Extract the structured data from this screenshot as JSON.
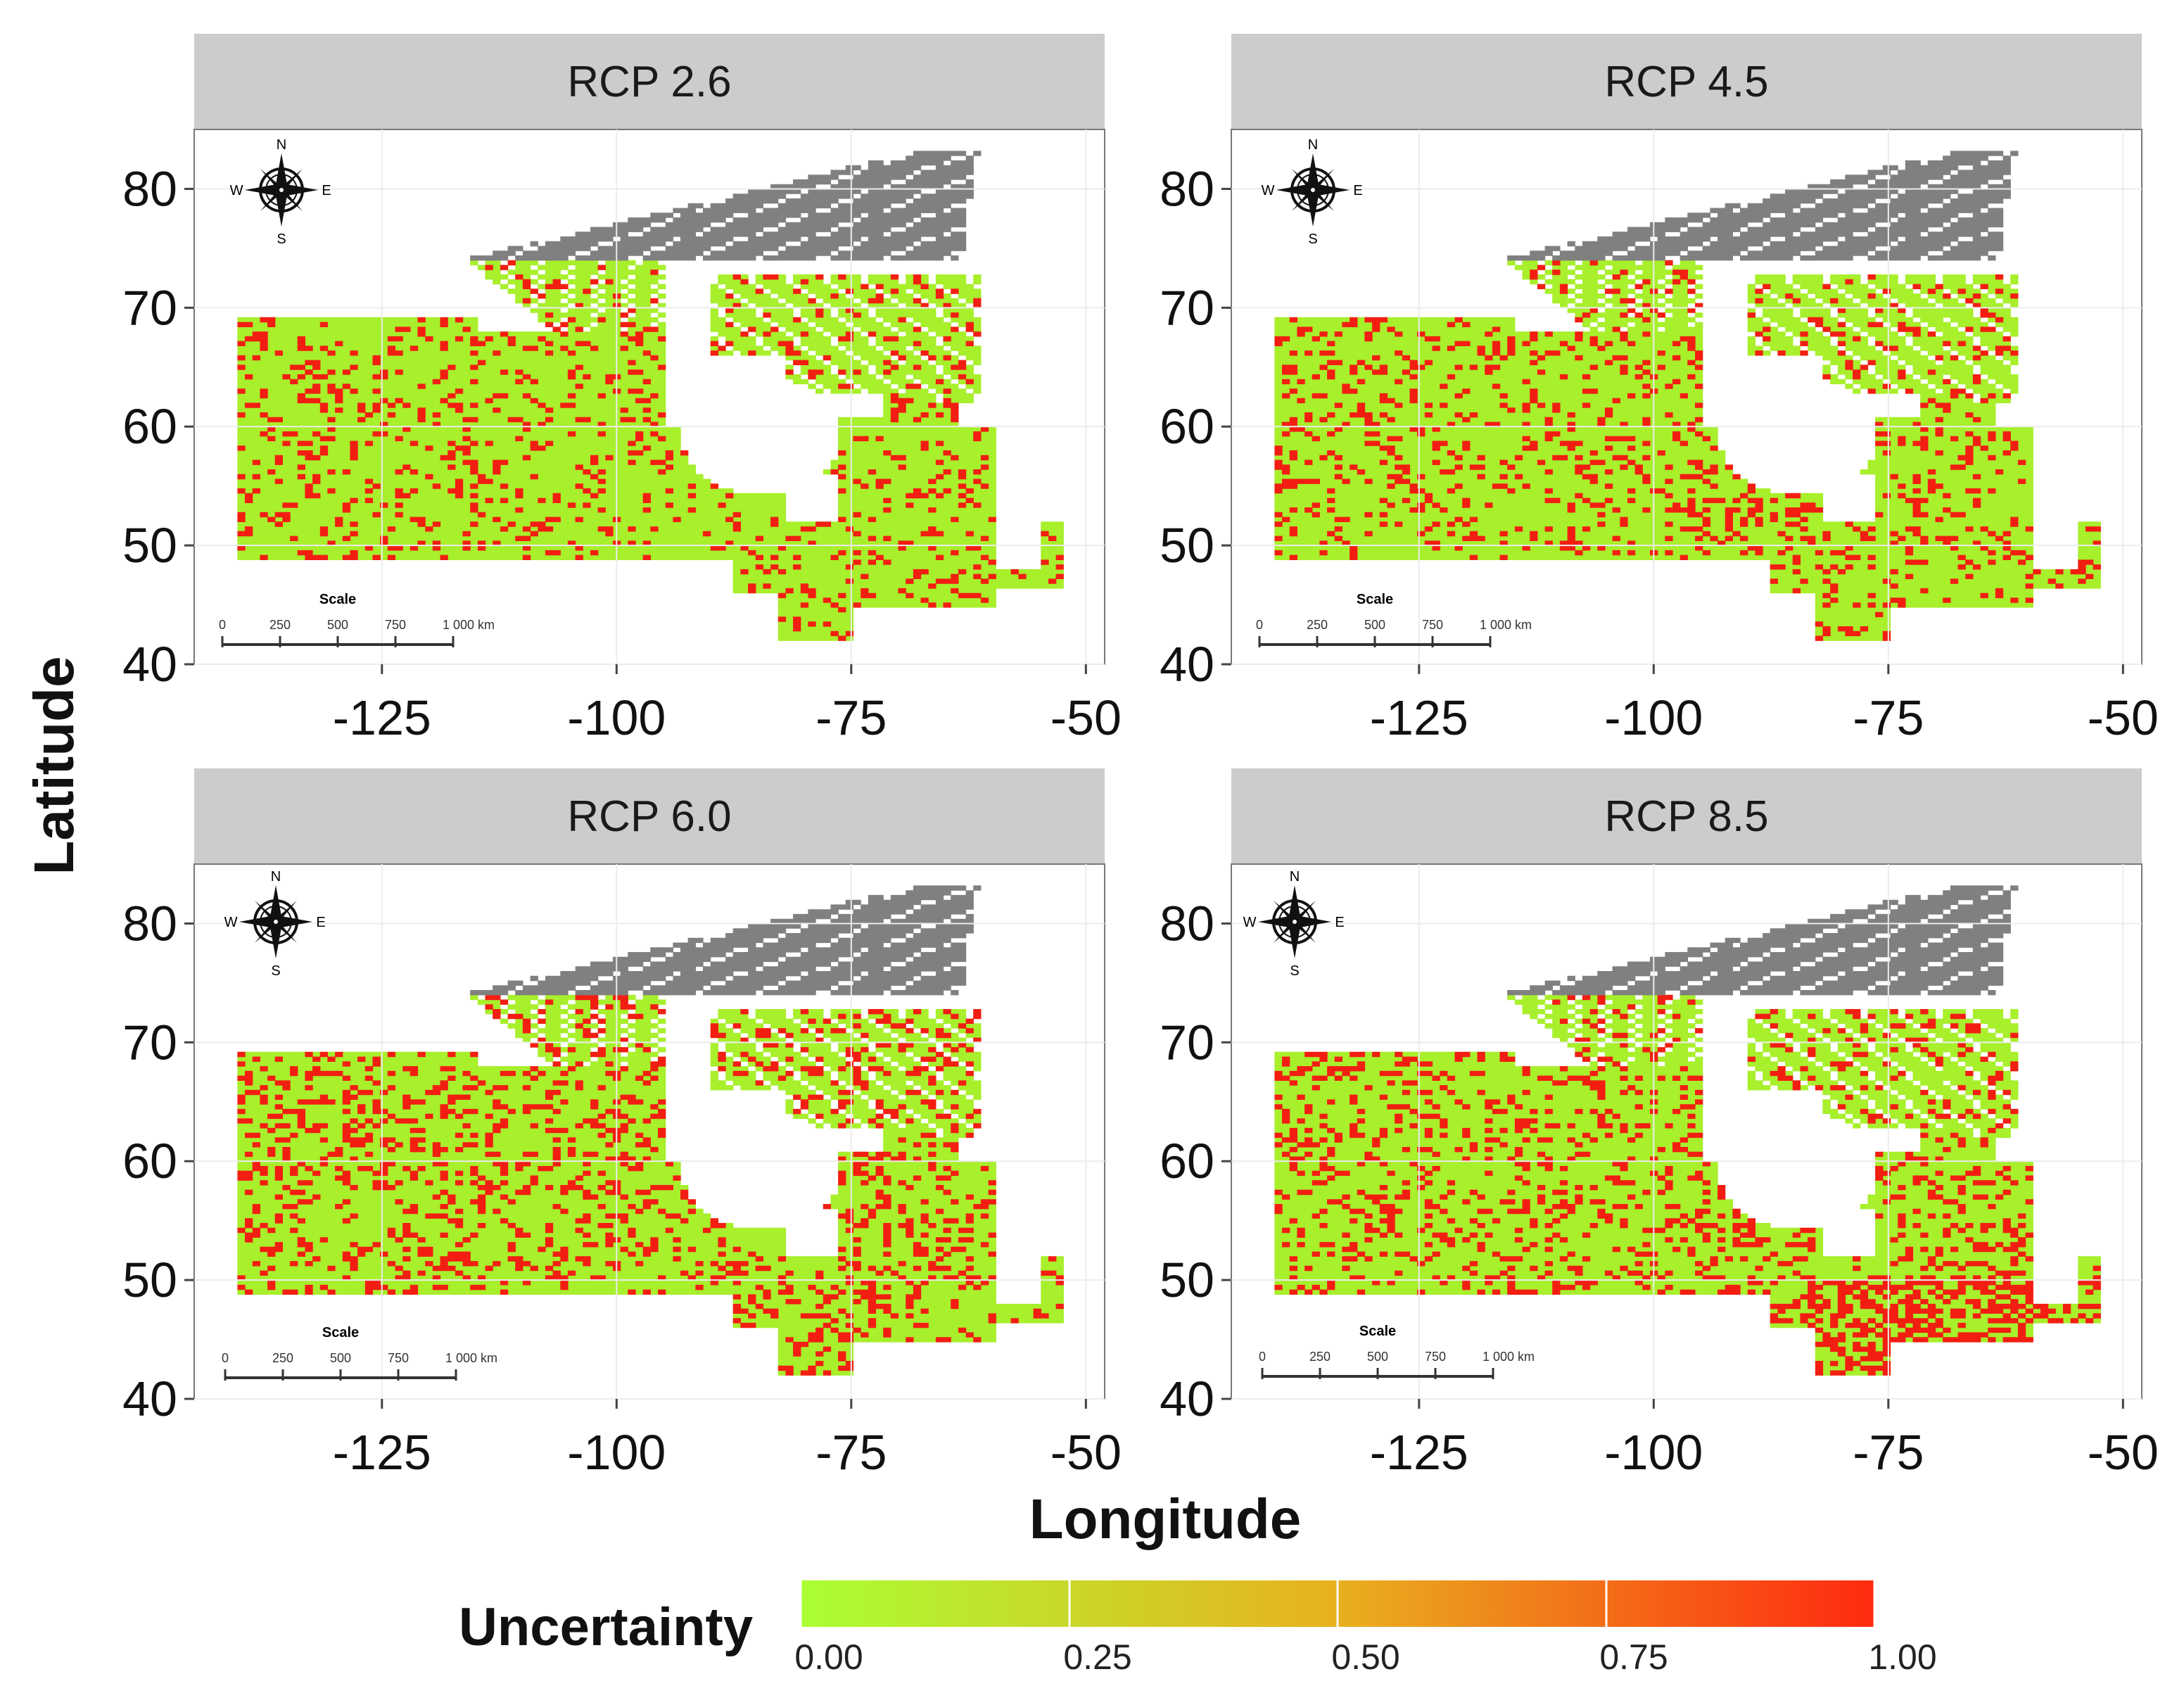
{
  "figure": {
    "x_axis_title": "Longitude",
    "y_axis_title": "Latitude",
    "x_ticks": [
      "-125",
      "-100",
      "-75",
      "-50"
    ],
    "y_ticks": [
      "80",
      "70",
      "60",
      "50",
      "40"
    ],
    "x_range": [
      -145,
      -48
    ],
    "y_range": [
      40,
      85
    ]
  },
  "panels": [
    {
      "title": "RCP 2.6",
      "red_fraction": 0.16
    },
    {
      "title": "RCP 4.5",
      "red_fraction": 0.17
    },
    {
      "title": "RCP 6.0",
      "red_fraction": 0.22
    },
    {
      "title": "RCP 8.5",
      "red_fraction": 0.2
    }
  ],
  "compass": {
    "n": "N",
    "s": "S",
    "e": "E",
    "w": "W"
  },
  "scale_bar": {
    "title": "Scale",
    "labels": [
      "0",
      "250",
      "500",
      "750",
      "1 000 km"
    ]
  },
  "legend": {
    "title": "Uncertainty",
    "ticks": [
      "0.00",
      "0.25",
      "0.50",
      "0.75",
      "1.00"
    ],
    "low_color": "#aaff33",
    "mid_color": "#e8b020",
    "high_color": "#ff2a10"
  },
  "colors": {
    "strip_bg": "#cccccc",
    "no_data_gray": "#808080",
    "low_green": "#a8ef2c",
    "high_red": "#f21e12"
  }
}
